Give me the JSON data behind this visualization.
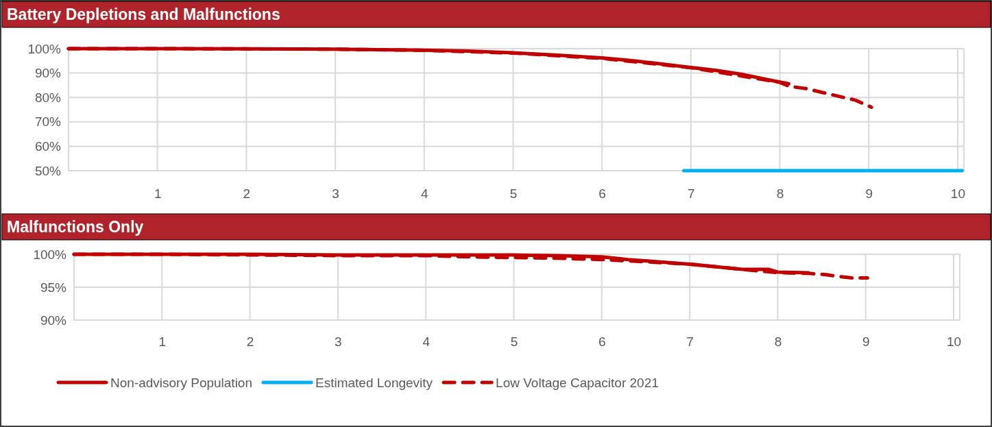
{
  "chart_data": [
    {
      "type": "line",
      "title": "Battery Depletions and Malfunctions",
      "xlim": [
        0,
        10.07
      ],
      "xticks": [
        1,
        2,
        3,
        4,
        5,
        6,
        7,
        8,
        9,
        10
      ],
      "ylim": [
        50,
        100
      ],
      "yticks": [
        {
          "value": 50,
          "label": "50%"
        },
        {
          "value": 60,
          "label": "60%"
        },
        {
          "value": 70,
          "label": "70%"
        },
        {
          "value": 80,
          "label": "80%"
        },
        {
          "value": 90,
          "label": "90%"
        },
        {
          "value": 100,
          "label": "100%"
        }
      ],
      "grid": true,
      "legend": "bottom",
      "series": [
        {
          "name": "Non-advisory Population",
          "color": "#c00000",
          "line_style": "solid",
          "x": [
            0,
            1,
            2,
            3,
            3.5,
            4,
            4.5,
            5,
            5.5,
            6,
            6.3,
            6.6,
            7,
            7.3,
            7.6,
            7.9,
            8.1
          ],
          "values": [
            100,
            100,
            99.9,
            99.8,
            99.6,
            99.4,
            99,
            98.3,
            97.3,
            96.2,
            95.2,
            94,
            92.3,
            91,
            89.3,
            87,
            85.6
          ]
        },
        {
          "name": "Estimated Longevity",
          "color": "#00b0f0",
          "line_style": "solid",
          "x": [
            6.92,
            10.05
          ],
          "values": [
            50,
            50
          ]
        },
        {
          "name": "Low Voltage Capacitor 2021",
          "color": "#c00000",
          "line_style": "dashed",
          "x": [
            0,
            1,
            2,
            3,
            4,
            5,
            6,
            7,
            8,
            8.1,
            8.3,
            8.6,
            8.85,
            9.03
          ],
          "values": [
            100,
            100,
            99.9,
            99.8,
            99.3,
            98.2,
            96,
            92.2,
            86.2,
            84.6,
            83.6,
            81,
            78.9,
            76
          ]
        }
      ]
    },
    {
      "type": "line",
      "title": "Malfunctions Only",
      "xlim": [
        0,
        10.07
      ],
      "xticks": [
        1,
        2,
        3,
        4,
        5,
        6,
        7,
        8,
        9,
        10
      ],
      "ylim": [
        90,
        100
      ],
      "yticks": [
        {
          "value": 90,
          "label": "90%"
        },
        {
          "value": 95,
          "label": "95%"
        },
        {
          "value": 100,
          "label": "100%"
        }
      ],
      "grid": true,
      "series": [
        {
          "color": "#c00000",
          "line_style": "solid",
          "x": [
            0,
            1,
            2,
            3,
            4,
            5,
            5.5,
            6,
            6.3,
            6.7,
            7,
            7.3,
            7.6,
            7.9,
            8.0,
            8.35
          ],
          "values": [
            100,
            100,
            100,
            99.9,
            99.9,
            99.9,
            99.8,
            99.6,
            99.2,
            98.8,
            98.5,
            98.1,
            97.7,
            97.7,
            97.3,
            97.2
          ]
        },
        {
          "color": "#c00000",
          "line_style": "dashed",
          "x": [
            0,
            1,
            2,
            3,
            4,
            4.5,
            5,
            5.5,
            6,
            6.3,
            7,
            7.6,
            8,
            8.35,
            8.55,
            8.65,
            8.85,
            9.02
          ],
          "values": [
            100,
            100,
            99.9,
            99.8,
            99.8,
            99.6,
            99.5,
            99.4,
            99.2,
            99,
            98.5,
            97.7,
            97.2,
            97.1,
            96.9,
            96.7,
            96.4,
            96.4
          ]
        }
      ]
    }
  ]
}
